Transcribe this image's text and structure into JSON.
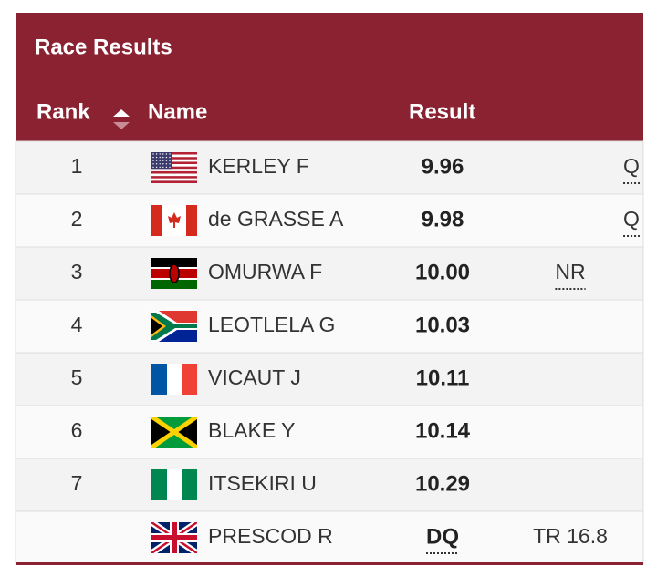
{
  "header": {
    "title": "Race Results",
    "columns": {
      "rank": "Rank",
      "name": "Name",
      "result": "Result"
    }
  },
  "table": {
    "rows": [
      {
        "rank": "1",
        "name": "KERLEY F",
        "result": "9.96",
        "qualification": "Q"
      },
      {
        "rank": "2",
        "name": "de GRASSE A",
        "result": "9.98",
        "qualification": "Q"
      },
      {
        "rank": "3",
        "name": "OMURWA F",
        "result": "10.00",
        "note": "NR"
      },
      {
        "rank": "4",
        "name": "LEOTLELA G",
        "result": "10.03"
      },
      {
        "rank": "5",
        "name": "VICAUT J",
        "result": "10.11"
      },
      {
        "rank": "6",
        "name": "BLAKE Y",
        "result": "10.14"
      },
      {
        "rank": "7",
        "name": "ITSEKIRI U",
        "result": "10.29"
      },
      {
        "name": "PRESCOD R",
        "result": "DQ",
        "note": "TR 16.8"
      }
    ]
  }
}
